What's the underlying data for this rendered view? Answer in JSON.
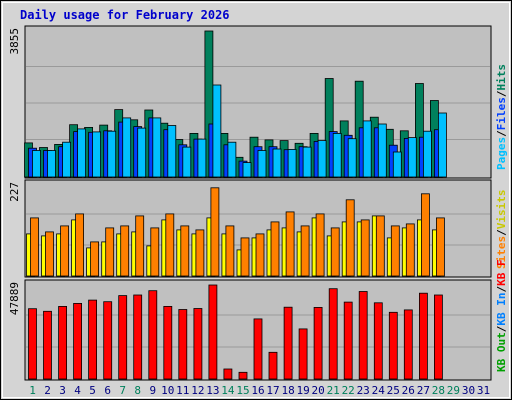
{
  "chart_data": {
    "type": "bar",
    "title": "Daily usage for February 2026",
    "days": [
      "1",
      "2",
      "3",
      "4",
      "5",
      "6",
      "7",
      "8",
      "9",
      "10",
      "11",
      "12",
      "13",
      "14",
      "15",
      "16",
      "17",
      "18",
      "19",
      "20",
      "21",
      "22",
      "23",
      "24",
      "25",
      "26",
      "27",
      "28",
      "29",
      "30",
      "31"
    ],
    "weekend_days": [
      "1",
      "7",
      "8",
      "14",
      "15",
      "21",
      "22",
      "28",
      "29"
    ],
    "colors": {
      "hits": "#00805c",
      "files": "#0040ff",
      "pages": "#00c0ff",
      "visits": "#ffff00",
      "sites": "#ff8000",
      "kb_out": "#00e000",
      "kb_in": "#0080ff",
      "kb_f": "#ff0000",
      "weekend_label": "#00805c",
      "weekday_label": "#000080"
    },
    "panels": [
      {
        "id": "top",
        "ymax_label": "3855",
        "ymax": 3855,
        "legend": [
          {
            "text": "Hits",
            "color": "#00805c"
          },
          {
            "text": "/",
            "color": "#000000"
          },
          {
            "text": "Files",
            "color": "#0040ff"
          },
          {
            "text": "/",
            "color": "#000000"
          },
          {
            "text": "Pages",
            "color": "#00c0ff"
          }
        ],
        "series": [
          {
            "name": "Hits",
            "color": "#00805c",
            "values": [
              900,
              780,
              860,
              1380,
              1310,
              1370,
              1780,
              1510,
              1770,
              1420,
              990,
              1150,
              3855,
              1150,
              520,
              1050,
              980,
              960,
              890,
              1150,
              2600,
              1480,
              2530,
              1580,
              1260,
              1220,
              2470,
              2020,
              0,
              0,
              0
            ]
          },
          {
            "name": "Files",
            "color": "#0040ff",
            "values": [
              760,
              700,
              800,
              1200,
              1180,
              1220,
              1450,
              1330,
              1560,
              1250,
              850,
              1000,
              1400,
              850,
              420,
              800,
              800,
              720,
              800,
              940,
              1200,
              1100,
              1300,
              1300,
              840,
              1020,
              1050,
              1250,
              0,
              0,
              0
            ]
          },
          {
            "name": "Pages",
            "color": "#00c0ff",
            "values": [
              700,
              700,
              920,
              1270,
              1190,
              1210,
              1560,
              1290,
              1560,
              1360,
              790,
              1000,
              2430,
              920,
              380,
              700,
              740,
              730,
              790,
              960,
              1150,
              1010,
              1480,
              1400,
              660,
              1040,
              1210,
              1690,
              0,
              0,
              0
            ]
          }
        ]
      },
      {
        "id": "middle",
        "ymax_label": "227",
        "ymax": 227,
        "legend": [
          {
            "text": "Visits",
            "color": "#c8c800"
          },
          {
            "text": "/",
            "color": "#000000"
          },
          {
            "text": "Sites",
            "color": "#ff8000"
          }
        ],
        "series": [
          {
            "name": "Visits",
            "color": "#ffff00",
            "values": [
              105,
              100,
              105,
              140,
              70,
              85,
              105,
              110,
              75,
              140,
              115,
              105,
              145,
              105,
              65,
              95,
              115,
              120,
              110,
              145,
              100,
              135,
              135,
              150,
              95,
              120,
              140,
              115,
              0,
              0,
              0
            ]
          },
          {
            "name": "Sites",
            "color": "#ff8000",
            "values": [
              145,
              110,
              125,
              155,
              85,
              120,
              125,
              150,
              120,
              155,
              125,
              115,
              220,
              125,
              95,
              105,
              135,
              160,
              125,
              155,
              120,
              190,
              140,
              150,
              125,
              130,
              205,
              145,
              0,
              0,
              0
            ]
          }
        ]
      },
      {
        "id": "bottom",
        "ymax_label": "47889",
        "ymax": 47889,
        "legend": [
          {
            "text": "KB F",
            "color": "#ff0000"
          },
          {
            "text": "/",
            "color": "#000000"
          },
          {
            "text": "KB In",
            "color": "#0080ff"
          },
          {
            "text": "/",
            "color": "#000000"
          },
          {
            "text": "KB Out",
            "color": "#00a000"
          }
        ],
        "series": [
          {
            "name": "KB F",
            "color": "#ff0000",
            "values": [
              35800,
              34500,
              37000,
              38500,
              40200,
              39400,
              42500,
              42800,
              45000,
              37000,
              35400,
              35900,
              47889,
              5100,
              3400,
              30600,
              13600,
              36600,
              25500,
              36500,
              46000,
              39200,
              44600,
              38800,
              34000,
              35200,
              43700,
              42800,
              0,
              0,
              0
            ]
          }
        ]
      }
    ]
  }
}
